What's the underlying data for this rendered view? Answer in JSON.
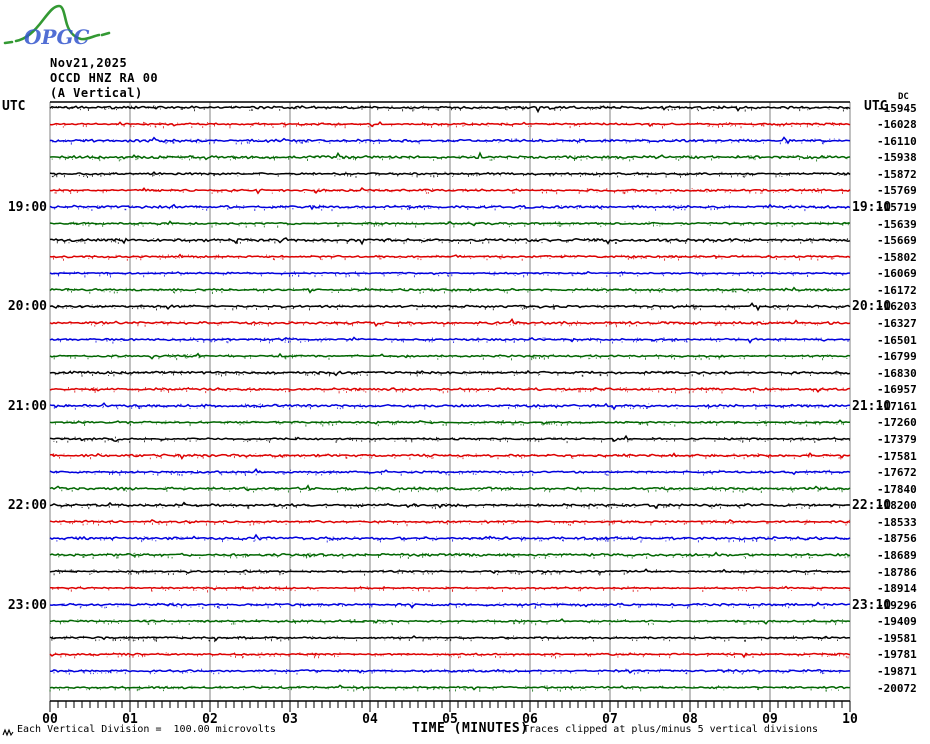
{
  "logo": {
    "text": "OPGC",
    "curve_color": "#339933",
    "text_color": "#3355cc"
  },
  "header": {
    "date": "Nov21,2025",
    "station": "OCCD HNZ RA 00",
    "component": "(A Vertical)"
  },
  "left_axis": {
    "title": "UTC"
  },
  "right_axis": {
    "title": "UTC",
    "dc_label": "DC"
  },
  "x_axis": {
    "title": "TIME (MINUTES)"
  },
  "footer": {
    "scale_note": "Each Vertical Division =  100.00 microvolts",
    "clip_note": "Traces clipped at plus/minus 5 vertical divisions"
  },
  "chart_data": {
    "type": "line",
    "variant": "helicorder-seismogram",
    "title": "OCCD HNZ RA 00 (A Vertical) Nov21,2025",
    "xlabel": "TIME (MINUTES)",
    "x_range_minutes": [
      0,
      10
    ],
    "x_tick_labels": [
      "00",
      "01",
      "02",
      "03",
      "04",
      "05",
      "06",
      "07",
      "08",
      "09",
      "10"
    ],
    "minutes_per_row": 10,
    "grid": "vertical-minute-lines",
    "trace_description": "quiescent flat background noise on every row, no seismic events, traces clipped at plus/minus 5 vertical divisions, each vertical division = 100.00 microvolts",
    "colors": {
      "black": "#000000",
      "red": "#dd0000",
      "blue": "#0000dd",
      "green": "#006600",
      "grid": "#808080"
    },
    "left_hour_labels": [
      {
        "row": 6,
        "label": "19:00"
      },
      {
        "row": 12,
        "label": "20:00"
      },
      {
        "row": 18,
        "label": "21:00"
      },
      {
        "row": 24,
        "label": "22:00"
      },
      {
        "row": 30,
        "label": "23:00"
      }
    ],
    "right_hour_labels": [
      {
        "row": 6,
        "label": "19:10"
      },
      {
        "row": 12,
        "label": "20:10"
      },
      {
        "row": 18,
        "label": "21:10"
      },
      {
        "row": 24,
        "label": "22:10"
      },
      {
        "row": 30,
        "label": "23:10"
      }
    ],
    "rows": [
      {
        "start": "18:00",
        "end": "18:10",
        "color": "black",
        "dc": -15945
      },
      {
        "start": "18:10",
        "end": "18:20",
        "color": "red",
        "dc": -16028
      },
      {
        "start": "18:20",
        "end": "18:30",
        "color": "blue",
        "dc": -16110
      },
      {
        "start": "18:30",
        "end": "18:40",
        "color": "green",
        "dc": -15938
      },
      {
        "start": "18:40",
        "end": "18:50",
        "color": "black",
        "dc": -15872
      },
      {
        "start": "18:50",
        "end": "19:00",
        "color": "red",
        "dc": -15769
      },
      {
        "start": "19:00",
        "end": "19:10",
        "color": "blue",
        "dc": -15719
      },
      {
        "start": "19:10",
        "end": "19:20",
        "color": "green",
        "dc": -15639
      },
      {
        "start": "19:20",
        "end": "19:30",
        "color": "black",
        "dc": -15669
      },
      {
        "start": "19:30",
        "end": "19:40",
        "color": "red",
        "dc": -15802
      },
      {
        "start": "19:40",
        "end": "19:50",
        "color": "blue",
        "dc": -16069
      },
      {
        "start": "19:50",
        "end": "20:00",
        "color": "green",
        "dc": -16172
      },
      {
        "start": "20:00",
        "end": "20:10",
        "color": "black",
        "dc": -16203
      },
      {
        "start": "20:10",
        "end": "20:20",
        "color": "red",
        "dc": -16327
      },
      {
        "start": "20:20",
        "end": "20:30",
        "color": "blue",
        "dc": -16501
      },
      {
        "start": "20:30",
        "end": "20:40",
        "color": "green",
        "dc": -16799
      },
      {
        "start": "20:40",
        "end": "20:50",
        "color": "black",
        "dc": -16830
      },
      {
        "start": "20:50",
        "end": "21:00",
        "color": "red",
        "dc": -16957
      },
      {
        "start": "21:00",
        "end": "21:10",
        "color": "blue",
        "dc": -17161
      },
      {
        "start": "21:10",
        "end": "21:20",
        "color": "green",
        "dc": -17260
      },
      {
        "start": "21:20",
        "end": "21:30",
        "color": "black",
        "dc": -17379
      },
      {
        "start": "21:30",
        "end": "21:40",
        "color": "red",
        "dc": -17581
      },
      {
        "start": "21:40",
        "end": "21:50",
        "color": "blue",
        "dc": -17672
      },
      {
        "start": "21:50",
        "end": "22:00",
        "color": "green",
        "dc": -17840
      },
      {
        "start": "22:00",
        "end": "22:10",
        "color": "black",
        "dc": -18200
      },
      {
        "start": "22:10",
        "end": "22:20",
        "color": "red",
        "dc": -18533
      },
      {
        "start": "22:20",
        "end": "22:30",
        "color": "blue",
        "dc": -18756
      },
      {
        "start": "22:30",
        "end": "22:40",
        "color": "green",
        "dc": -18689
      },
      {
        "start": "22:40",
        "end": "22:50",
        "color": "black",
        "dc": -18786
      },
      {
        "start": "22:50",
        "end": "23:00",
        "color": "red",
        "dc": -18914
      },
      {
        "start": "23:00",
        "end": "23:10",
        "color": "blue",
        "dc": -19296
      },
      {
        "start": "23:10",
        "end": "23:20",
        "color": "green",
        "dc": -19409
      },
      {
        "start": "23:20",
        "end": "23:30",
        "color": "black",
        "dc": -19581
      },
      {
        "start": "23:30",
        "end": "23:40",
        "color": "red",
        "dc": -19781
      },
      {
        "start": "23:40",
        "end": "23:50",
        "color": "blue",
        "dc": -19871
      },
      {
        "start": "23:50",
        "end": "24:00",
        "color": "green",
        "dc": -20072
      }
    ]
  }
}
